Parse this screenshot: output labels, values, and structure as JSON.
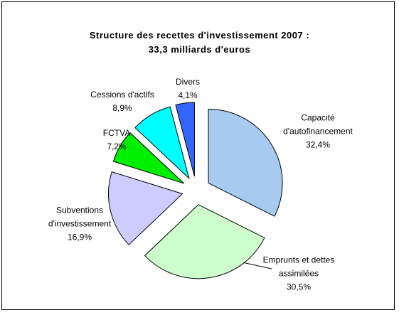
{
  "chart_data": {
    "type": "pie",
    "title": "Structure des recettes d'investissement 2007 :",
    "subtitle": "33,3 milliards d'euros",
    "categories": [
      "Capacité d'autofinancement",
      "Emprunts et dettes assimilées",
      "Subventions d'investissement",
      "FCTVA",
      "Cessions d'actifs",
      "Divers"
    ],
    "values": [
      32.4,
      30.5,
      16.9,
      7.2,
      8.9,
      4.1
    ],
    "value_labels": [
      "32,4%",
      "30,5%",
      "16,9%",
      "7,2%",
      "8,9%",
      "4,1%"
    ],
    "colors": [
      "#a6caf0",
      "#ccffcc",
      "#ccccff",
      "#00ee00",
      "#00ffff",
      "#3366ff"
    ]
  }
}
